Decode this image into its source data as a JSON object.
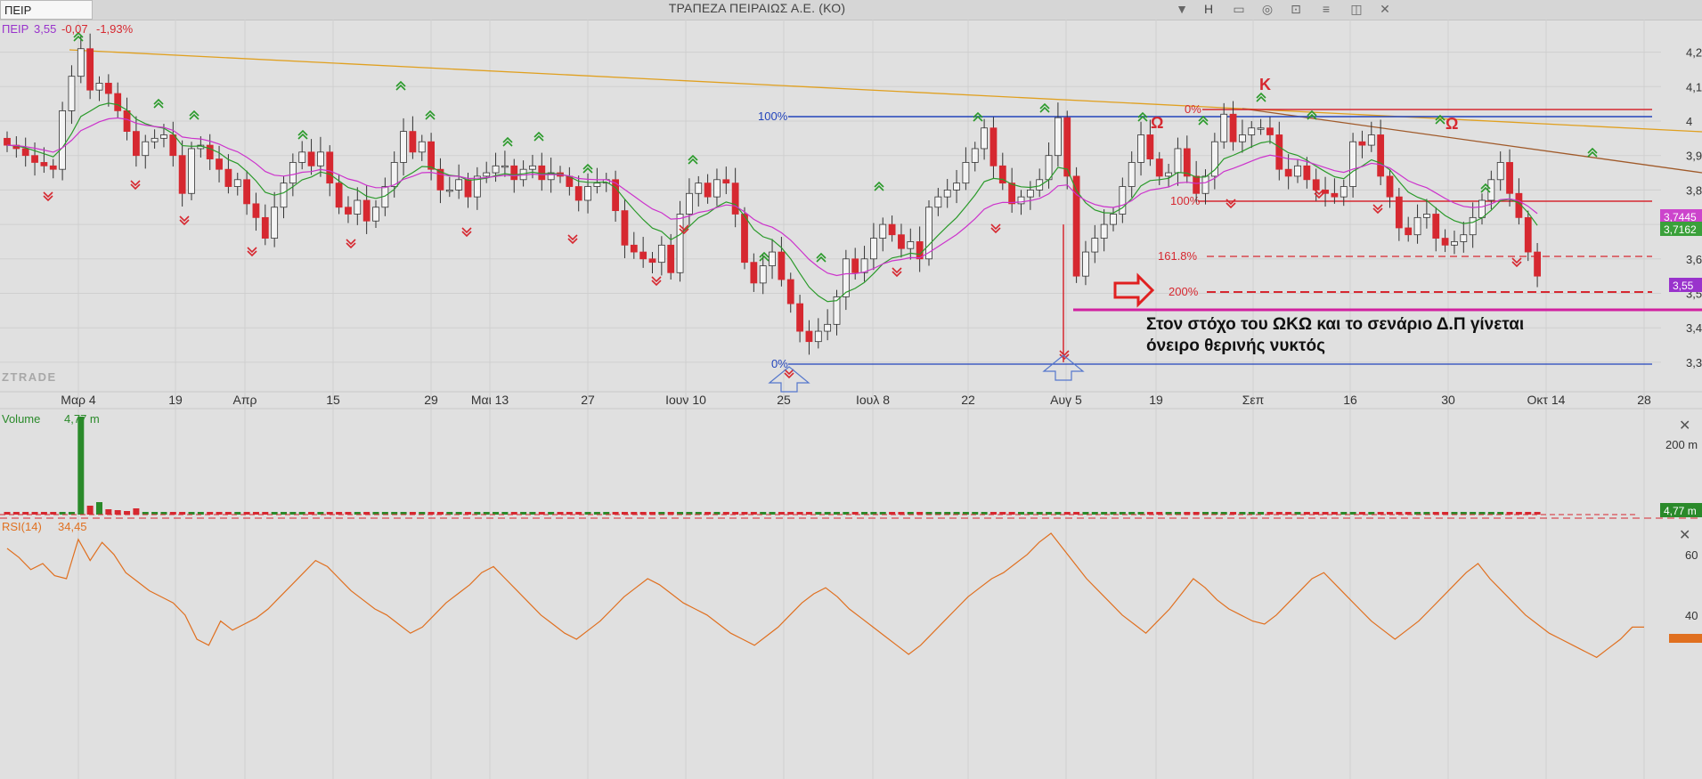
{
  "toolbar": {
    "symbol_value": "ΠΕΙΡ",
    "title": "ΤΡΑΠΕΖΑ ΠΕΙΡΑΙΩΣ Α.Ε. (ΚΟ)",
    "dropdown_icon": "chevron-down-icon",
    "period_label": "H",
    "icons": [
      "layout-icon",
      "chat-icon",
      "lock-icon",
      "menu-icon",
      "window-icon",
      "close-icon"
    ]
  },
  "legend": {
    "symbol": "ΠΕΙΡ",
    "price": "3,55",
    "change": "-0,07",
    "change_pct": "-1,93%"
  },
  "watermark": "ZTRADE",
  "annotation": {
    "line1": "Στον στόχο του ΩΚΩ και το σενάριο Δ.Π γίνεται",
    "line2": "όνειρο θερινής νυκτός"
  },
  "pattern_labels": {
    "left_shoulder": "Ω",
    "head": "Κ",
    "right_shoulder": "Ω"
  },
  "price_tags": {
    "ma_fast": "3,7445",
    "ma_slow": "3,7162",
    "last": "3,55"
  },
  "volume_panel": {
    "label": "Volume",
    "value": "4,77 m",
    "axis_label": "200 m",
    "last_tag": "4,77 m"
  },
  "rsi_panel": {
    "label": "RSI(14)",
    "value": "34,45",
    "axis_labels": [
      "60",
      "40"
    ]
  },
  "colors": {
    "up_candle": "#f4f4f4",
    "down_candle": "#d62830",
    "ma_fast": "#cc33cc",
    "ma_slow": "#2a9a2a",
    "trendline_orange": "#e0a020",
    "trendline_brown": "#a05a2a",
    "fib_blue": "#2244bb",
    "fib_red": "#d62830",
    "magenta_line": "#d020a0",
    "rsi": "#e07020",
    "background": "#e0e0e0"
  },
  "chart_data": {
    "type": "candlestick",
    "price_axis": {
      "ticks": [
        3.3,
        3.4,
        3.5,
        3.6,
        3.7,
        3.8,
        3.9,
        4.0,
        4.1,
        4.2
      ],
      "tick_labels": [
        "3,3",
        "3,4",
        "3,5",
        "3,6",
        "3,7",
        "3,8",
        "3,9",
        "4",
        "4,1",
        "4,2"
      ]
    },
    "x_axis_labels": [
      "Μαρ 4",
      "19",
      "Απρ",
      "15",
      "29",
      "Μαι 13",
      "27",
      "Ιουν 10",
      "25",
      "Ιουλ 8",
      "22",
      "Αυγ 5",
      "19",
      "Σεπ",
      "16",
      "30",
      "Οκτ 14",
      "28"
    ],
    "close": [
      3.93,
      3.92,
      3.9,
      3.88,
      3.87,
      3.86,
      4.03,
      4.13,
      4.21,
      4.09,
      4.11,
      4.08,
      4.03,
      3.97,
      3.9,
      3.94,
      3.95,
      3.96,
      3.9,
      3.79,
      3.92,
      3.93,
      3.89,
      3.86,
      3.81,
      3.83,
      3.76,
      3.72,
      3.66,
      3.75,
      3.82,
      3.88,
      3.91,
      3.87,
      3.91,
      3.82,
      3.75,
      3.73,
      3.77,
      3.71,
      3.75,
      3.81,
      3.88,
      3.97,
      3.91,
      3.94,
      3.86,
      3.8,
      3.8,
      3.83,
      3.78,
      3.84,
      3.85,
      3.87,
      3.87,
      3.83,
      3.86,
      3.87,
      3.83,
      3.85,
      3.84,
      3.81,
      3.77,
      3.81,
      3.82,
      3.83,
      3.74,
      3.64,
      3.62,
      3.6,
      3.59,
      3.64,
      3.56,
      3.73,
      3.79,
      3.82,
      3.78,
      3.83,
      3.82,
      3.73,
      3.59,
      3.53,
      3.58,
      3.62,
      3.54,
      3.47,
      3.39,
      3.36,
      3.39,
      3.41,
      3.49,
      3.6,
      3.56,
      3.6,
      3.66,
      3.7,
      3.67,
      3.63,
      3.65,
      3.6,
      3.75,
      3.78,
      3.8,
      3.82,
      3.88,
      3.92,
      3.98,
      3.87,
      3.82,
      3.76,
      3.78,
      3.8,
      3.83,
      3.9,
      4.01,
      3.84,
      3.55,
      3.62,
      3.66,
      3.7,
      3.73,
      3.81,
      3.88,
      3.96,
      3.89,
      3.84,
      3.85,
      3.92,
      3.84,
      3.79,
      3.84,
      3.94,
      4.02,
      3.94,
      3.96,
      3.98,
      3.98,
      3.96,
      3.86,
      3.84,
      3.87,
      3.83,
      3.8,
      3.79,
      3.78,
      3.81,
      3.94,
      3.93,
      3.96,
      3.84,
      3.78,
      3.69,
      3.67,
      3.72,
      3.73,
      3.66,
      3.64,
      3.65,
      3.67,
      3.72,
      3.77,
      3.83,
      3.88,
      3.79,
      3.72,
      3.62,
      3.55
    ],
    "volume_levels": {
      "spike_index": 8,
      "spike_relative": 1.0,
      "typical_relative": 0.03
    },
    "rsi": [
      60,
      57,
      53,
      55,
      51,
      50,
      63,
      56,
      62,
      58,
      52,
      49,
      46,
      44,
      42,
      38,
      30,
      28,
      36,
      33,
      35,
      37,
      40,
      44,
      48,
      52,
      56,
      54,
      50,
      46,
      43,
      40,
      38,
      35,
      32,
      34,
      38,
      42,
      45,
      48,
      52,
      54,
      50,
      46,
      42,
      38,
      35,
      32,
      30,
      33,
      36,
      40,
      44,
      47,
      50,
      48,
      45,
      42,
      40,
      38,
      35,
      32,
      30,
      28,
      31,
      34,
      38,
      42,
      45,
      47,
      44,
      40,
      37,
      34,
      31,
      28,
      25,
      28,
      32,
      36,
      40,
      44,
      47,
      50,
      52,
      55,
      58,
      62,
      65,
      60,
      55,
      50,
      46,
      42,
      38,
      35,
      32,
      36,
      40,
      45,
      50,
      47,
      43,
      40,
      38,
      36,
      35,
      38,
      42,
      46,
      50,
      52,
      48,
      44,
      40,
      36,
      33,
      30,
      33,
      36,
      40,
      44,
      48,
      52,
      55,
      50,
      46,
      42,
      38,
      35,
      32,
      30,
      28,
      26,
      24,
      27,
      30,
      34,
      34
    ]
  }
}
